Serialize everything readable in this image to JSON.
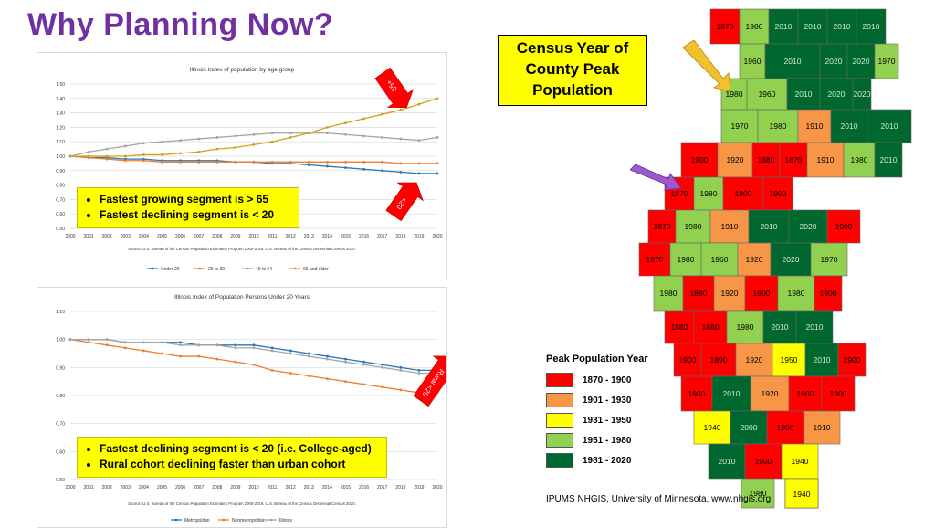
{
  "slide": {
    "title": "Why Planning Now?"
  },
  "chart_data": [
    {
      "type": "line",
      "title": "Illinois Index of population by age group",
      "x": [
        "2000",
        "2001",
        "2002",
        "2003",
        "2004",
        "2005",
        "2006",
        "2007",
        "2008",
        "2009",
        "2010",
        "2011",
        "2012",
        "2013",
        "2014",
        "2015",
        "2016",
        "2017",
        "2018",
        "2019",
        "2020"
      ],
      "ylim": [
        0.5,
        1.5
      ],
      "yticks": [
        "0.50",
        "0.60",
        "0.70",
        "0.80",
        "0.90",
        "1.00",
        "1.10",
        "1.20",
        "1.30",
        "1.40",
        "1.50"
      ],
      "series": [
        {
          "name": "Under 20",
          "color": "#2e75b6",
          "values": [
            1.0,
            0.99,
            0.99,
            0.98,
            0.98,
            0.97,
            0.97,
            0.97,
            0.97,
            0.96,
            0.96,
            0.95,
            0.95,
            0.94,
            0.93,
            0.92,
            0.91,
            0.9,
            0.89,
            0.88,
            0.88
          ]
        },
        {
          "name": "20 to 39",
          "color": "#ed7d31",
          "values": [
            1.0,
            0.99,
            0.98,
            0.97,
            0.97,
            0.96,
            0.96,
            0.96,
            0.96,
            0.96,
            0.96,
            0.96,
            0.96,
            0.96,
            0.96,
            0.96,
            0.96,
            0.96,
            0.95,
            0.95,
            0.95
          ]
        },
        {
          "name": "40 to 64",
          "color": "#a5a5a5",
          "values": [
            1.0,
            1.03,
            1.05,
            1.07,
            1.09,
            1.1,
            1.11,
            1.12,
            1.13,
            1.14,
            1.15,
            1.16,
            1.16,
            1.16,
            1.16,
            1.15,
            1.14,
            1.13,
            1.12,
            1.11,
            1.13
          ]
        },
        {
          "name": "65 and older",
          "color": "#d4a017",
          "values": [
            1.0,
            1.0,
            1.0,
            1.0,
            1.01,
            1.01,
            1.02,
            1.03,
            1.05,
            1.06,
            1.08,
            1.1,
            1.13,
            1.16,
            1.2,
            1.23,
            1.26,
            1.29,
            1.32,
            1.36,
            1.4
          ]
        }
      ],
      "source": "Source: U.S. Bureau of the Census Population Estimates Program 2000-2019, U.S. Bureau of the Census Decennial Census 2020.",
      "annotations": [
        {
          "text": "65+",
          "color": "#ff0000"
        },
        {
          "text": "<20",
          "color": "#ff0000"
        }
      ],
      "callout": [
        "Fastest growing segment is > 65",
        "Fastest declining segment is < 20"
      ]
    },
    {
      "type": "line",
      "title": "Illinois Index of Population Persons Under 20 Years",
      "x": [
        "2000",
        "2001",
        "2002",
        "2003",
        "2004",
        "2005",
        "2006",
        "2007",
        "2008",
        "2009",
        "2010",
        "2011",
        "2012",
        "2013",
        "2014",
        "2015",
        "2016",
        "2017",
        "2018",
        "2019",
        "2020"
      ],
      "ylim": [
        0.5,
        1.1
      ],
      "yticks": [
        "0.50",
        "0.60",
        "0.70",
        "0.80",
        "0.90",
        "1.00",
        "1.10"
      ],
      "series": [
        {
          "name": "Metropolitan",
          "color": "#2e75b6",
          "values": [
            1.0,
            1.0,
            1.0,
            0.99,
            0.99,
            0.99,
            0.99,
            0.98,
            0.98,
            0.98,
            0.98,
            0.97,
            0.96,
            0.95,
            0.94,
            0.93,
            0.92,
            0.91,
            0.9,
            0.89,
            0.89
          ]
        },
        {
          "name": "Nonmetropolitan",
          "color": "#ed7d31",
          "values": [
            1.0,
            0.99,
            0.98,
            0.97,
            0.96,
            0.95,
            0.94,
            0.94,
            0.93,
            0.92,
            0.91,
            0.89,
            0.88,
            0.87,
            0.86,
            0.85,
            0.84,
            0.83,
            0.82,
            0.81,
            0.81
          ]
        },
        {
          "name": "Illinois",
          "color": "#a5a5a5",
          "values": [
            1.0,
            1.0,
            1.0,
            0.99,
            0.99,
            0.99,
            0.98,
            0.98,
            0.98,
            0.97,
            0.97,
            0.96,
            0.95,
            0.94,
            0.93,
            0.92,
            0.91,
            0.9,
            0.89,
            0.88,
            0.88
          ]
        }
      ],
      "source": "Source: U.S. Bureau of the Census Population Estimates Program 2000-2019, U.S. Bureau of the Census Decennial Census 2020.",
      "annotations": [
        {
          "text": "Rural <20",
          "color": "#ff0000"
        }
      ],
      "callout": [
        "Fastest declining segment is < 20 (i.e. College-aged)",
        "Rural cohort declining faster than urban cohort"
      ]
    }
  ],
  "map": {
    "title_lines": [
      "Census Year of",
      "County Peak",
      "Population"
    ],
    "legend_title": "Peak Population Year",
    "legend": [
      {
        "label": "1870 - 1900",
        "color": "#ff0000"
      },
      {
        "label": "1901 - 1930",
        "color": "#f79646"
      },
      {
        "label": "1931 - 1950",
        "color": "#ffff00"
      },
      {
        "label": "1951 - 1980",
        "color": "#92d050"
      },
      {
        "label": "1981 - 2020",
        "color": "#00682f"
      }
    ],
    "source": "IPUMS NHGIS, University of Minnesota, www.nhgis.org",
    "counties": [
      {
        "year": "1870",
        "color": "#ff0000"
      },
      {
        "year": "1980",
        "color": "#92d050"
      },
      {
        "year": "2010",
        "color": "#00682f"
      },
      {
        "year": "2010",
        "color": "#00682f"
      },
      {
        "year": "2010",
        "color": "#00682f"
      },
      {
        "year": "2010",
        "color": "#00682f"
      },
      {
        "year": "1960",
        "color": "#92d050"
      },
      {
        "year": "2010",
        "color": "#00682f"
      },
      {
        "year": "2020",
        "color": "#00682f"
      },
      {
        "year": "2020",
        "color": "#00682f"
      },
      {
        "year": "1970",
        "color": "#92d050"
      },
      {
        "year": "1980",
        "color": "#92d050"
      },
      {
        "year": "1960",
        "color": "#92d050"
      },
      {
        "year": "2010",
        "color": "#00682f"
      },
      {
        "year": "2020",
        "color": "#00682f"
      },
      {
        "year": "2020",
        "color": "#00682f"
      },
      {
        "year": "1970",
        "color": "#92d050"
      },
      {
        "year": "1980",
        "color": "#92d050"
      },
      {
        "year": "1910",
        "color": "#f79646"
      },
      {
        "year": "2010",
        "color": "#00682f"
      },
      {
        "year": "2010",
        "color": "#00682f"
      },
      {
        "year": "1900",
        "color": "#ff0000"
      },
      {
        "year": "1920",
        "color": "#f79646"
      },
      {
        "year": "1880",
        "color": "#ff0000"
      },
      {
        "year": "1870",
        "color": "#ff0000"
      },
      {
        "year": "1910",
        "color": "#f79646"
      },
      {
        "year": "1980",
        "color": "#92d050"
      },
      {
        "year": "2010",
        "color": "#00682f"
      },
      {
        "year": "1870",
        "color": "#ff0000"
      },
      {
        "year": "1980",
        "color": "#92d050"
      },
      {
        "year": "1900",
        "color": "#ff0000"
      },
      {
        "year": "1900",
        "color": "#ff0000"
      },
      {
        "year": "1870",
        "color": "#ff0000"
      },
      {
        "year": "1980",
        "color": "#92d050"
      },
      {
        "year": "1910",
        "color": "#f79646"
      },
      {
        "year": "2010",
        "color": "#00682f"
      },
      {
        "year": "2020",
        "color": "#00682f"
      },
      {
        "year": "1900",
        "color": "#ff0000"
      },
      {
        "year": "1870",
        "color": "#ff0000"
      },
      {
        "year": "1980",
        "color": "#92d050"
      },
      {
        "year": "1960",
        "color": "#92d050"
      },
      {
        "year": "1920",
        "color": "#f79646"
      },
      {
        "year": "2020",
        "color": "#00682f"
      },
      {
        "year": "1970",
        "color": "#92d050"
      },
      {
        "year": "1980",
        "color": "#92d050"
      },
      {
        "year": "1880",
        "color": "#ff0000"
      },
      {
        "year": "1920",
        "color": "#f79646"
      },
      {
        "year": "1900",
        "color": "#ff0000"
      },
      {
        "year": "1980",
        "color": "#92d050"
      },
      {
        "year": "1900",
        "color": "#ff0000"
      },
      {
        "year": "1880",
        "color": "#ff0000"
      },
      {
        "year": "1880",
        "color": "#ff0000"
      },
      {
        "year": "1980",
        "color": "#92d050"
      },
      {
        "year": "2010",
        "color": "#00682f"
      },
      {
        "year": "2010",
        "color": "#00682f"
      },
      {
        "year": "1900",
        "color": "#ff0000"
      },
      {
        "year": "1890",
        "color": "#ff0000"
      },
      {
        "year": "1920",
        "color": "#f79646"
      },
      {
        "year": "1950",
        "color": "#ffff00"
      },
      {
        "year": "2010",
        "color": "#00682f"
      },
      {
        "year": "1900",
        "color": "#ff0000"
      },
      {
        "year": "1900",
        "color": "#ff0000"
      },
      {
        "year": "2010",
        "color": "#00682f"
      },
      {
        "year": "1920",
        "color": "#f79646"
      },
      {
        "year": "1900",
        "color": "#ff0000"
      },
      {
        "year": "1900",
        "color": "#ff0000"
      },
      {
        "year": "1940",
        "color": "#ffff00"
      },
      {
        "year": "2000",
        "color": "#00682f"
      },
      {
        "year": "1900",
        "color": "#ff0000"
      },
      {
        "year": "1910",
        "color": "#f79646"
      },
      {
        "year": "2010",
        "color": "#00682f"
      },
      {
        "year": "1900",
        "color": "#ff0000"
      },
      {
        "year": "1940",
        "color": "#ffff00"
      },
      {
        "year": "1980",
        "color": "#92d050"
      },
      {
        "year": "1910",
        "color": "#f79646"
      },
      {
        "year": "1970",
        "color": "#92d050"
      },
      {
        "year": "1900",
        "color": "#ff0000"
      },
      {
        "year": "1910",
        "color": "#f79646"
      },
      {
        "year": "2020",
        "color": "#00682f"
      },
      {
        "year": "1880",
        "color": "#ff0000"
      },
      {
        "year": "2000",
        "color": "#00682f"
      },
      {
        "year": "1900",
        "color": "#ff0000"
      },
      {
        "year": "1980",
        "color": "#92d050"
      },
      {
        "year": "1940",
        "color": "#ffff00"
      },
      {
        "year": "1930",
        "color": "#f79646"
      },
      {
        "year": "1900",
        "color": "#ff0000"
      },
      {
        "year": "1980",
        "color": "#92d050"
      },
      {
        "year": "2020",
        "color": "#00682f"
      },
      {
        "year": "1920",
        "color": "#f79646"
      },
      {
        "year": "1900",
        "color": "#ff0000"
      },
      {
        "year": "1900",
        "color": "#ff0000"
      },
      {
        "year": "1900",
        "color": "#ff0000"
      },
      {
        "year": "1890",
        "color": "#ff0000"
      },
      {
        "year": "1940",
        "color": "#ffff00"
      },
      {
        "year": "1940",
        "color": "#ffff00"
      }
    ]
  }
}
